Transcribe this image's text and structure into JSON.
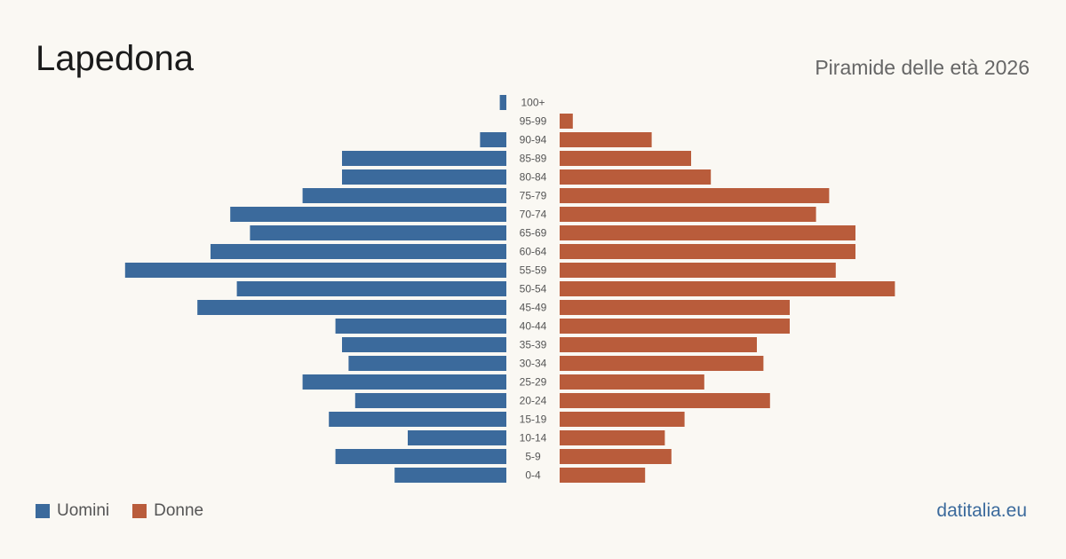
{
  "header": {
    "title": "Lapedona",
    "subtitle": "Piramide delle età 2026"
  },
  "legend": {
    "men_label": "Uomini",
    "women_label": "Donne"
  },
  "brand": "datitalia.eu",
  "colors": {
    "men": "#3b6a9c",
    "women": "#b95c3b",
    "label": "#555555",
    "background": "#faf8f3"
  },
  "chart_data": {
    "type": "bar",
    "orientation": "horizontal-pyramid",
    "categories": [
      "100+",
      "95-99",
      "90-94",
      "85-89",
      "80-84",
      "75-79",
      "70-74",
      "65-69",
      "60-64",
      "55-59",
      "50-54",
      "45-49",
      "40-44",
      "35-39",
      "30-34",
      "25-29",
      "20-24",
      "15-19",
      "10-14",
      "5-9",
      "0-4"
    ],
    "series": [
      {
        "name": "Uomini",
        "values": [
          1,
          0,
          4,
          25,
          25,
          31,
          42,
          39,
          45,
          58,
          41,
          47,
          26,
          25,
          24,
          31,
          23,
          27,
          15,
          26,
          17
        ]
      },
      {
        "name": "Donne",
        "values": [
          0,
          2,
          14,
          20,
          23,
          41,
          39,
          45,
          45,
          42,
          51,
          35,
          35,
          30,
          31,
          22,
          32,
          19,
          16,
          17,
          13
        ]
      }
    ],
    "xlabel": "",
    "ylabel": "",
    "grid": false,
    "legend_position": "bottom-left"
  }
}
